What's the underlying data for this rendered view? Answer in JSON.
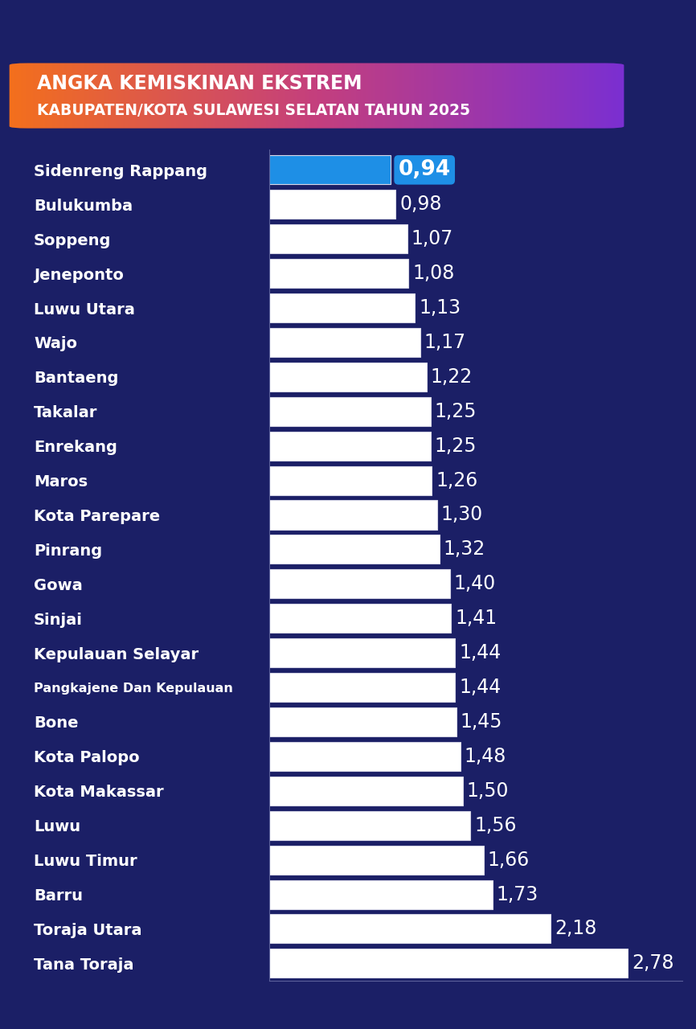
{
  "chart_data": {
    "type": "bar",
    "orientation": "horizontal",
    "title": "ANGKA KEMISKINAN EKSTREM",
    "subtitle": "KABUPATEN/KOTA SULAWESI SELATAN TAHUN 2025",
    "categories": [
      "Sidenreng Rappang",
      "Bulukumba",
      "Soppeng",
      "Jeneponto",
      "Luwu Utara",
      "Wajo",
      "Bantaeng",
      "Takalar",
      "Enrekang",
      "Maros",
      "Kota Parepare",
      "Pinrang",
      "Gowa",
      "Sinjai",
      "Kepulauan Selayar",
      "Pangkajene Dan Kepulauan",
      "Bone",
      "Kota Palopo",
      "Kota Makassar",
      "Luwu",
      "Luwu Timur",
      "Barru",
      "Toraja Utara",
      "Tana Toraja"
    ],
    "values": [
      0.94,
      0.98,
      1.07,
      1.08,
      1.13,
      1.17,
      1.22,
      1.25,
      1.25,
      1.26,
      1.3,
      1.32,
      1.4,
      1.41,
      1.44,
      1.44,
      1.45,
      1.48,
      1.5,
      1.56,
      1.66,
      1.73,
      2.18,
      2.78
    ],
    "value_labels": [
      "0,94",
      "0,98",
      "1,07",
      "1,08",
      "1,13",
      "1,17",
      "1,22",
      "1,25",
      "1,25",
      "1,26",
      "1,30",
      "1,32",
      "1,40",
      "1,41",
      "1,44",
      "1,44",
      "1,45",
      "1,48",
      "1,50",
      "1,56",
      "1,66",
      "1,73",
      "2,18",
      "2,78"
    ],
    "colors": [
      "#1e8fe6",
      "#ffffff",
      "#ffffff",
      "#ffffff",
      "#ffffff",
      "#ffffff",
      "#ffffff",
      "#ffffff",
      "#ffffff",
      "#ffffff",
      "#ffffff",
      "#ffffff",
      "#ffffff",
      "#ffffff",
      "#ffffff",
      "#ffffff",
      "#ffffff",
      "#ffffff",
      "#ffffff",
      "#ffffff",
      "#ffffff",
      "#ffffff",
      "#ffffff",
      "#ffffff"
    ],
    "xlim": [
      0,
      3.2
    ],
    "data_labels": true,
    "tick_labels": "y",
    "grid": false
  }
}
